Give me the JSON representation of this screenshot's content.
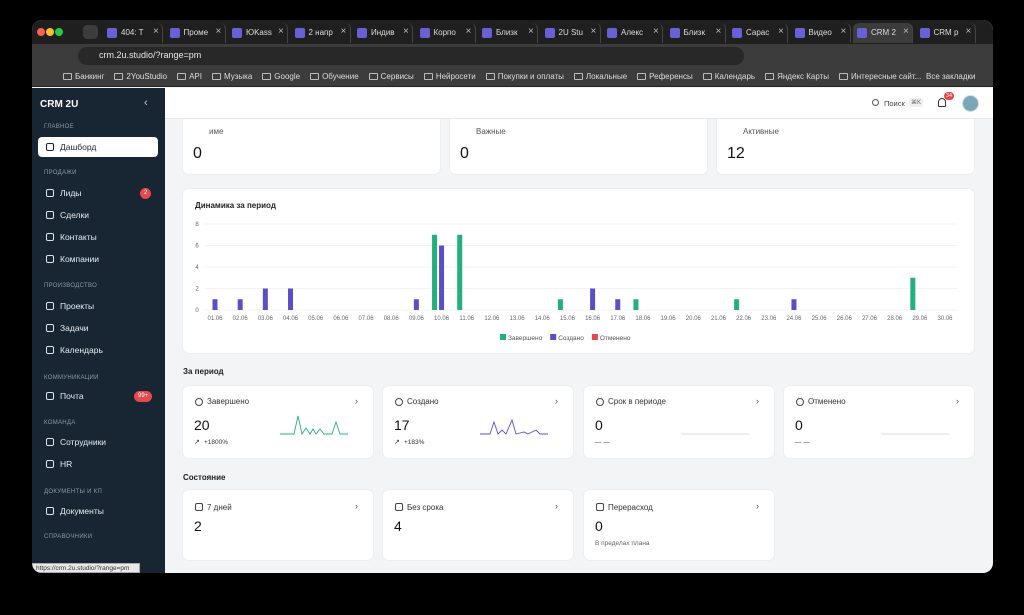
{
  "browser": {
    "tabs": [
      "404: T",
      "Проме",
      "ЮKass",
      "2 напр",
      "Индив",
      "Корпо",
      "Близк",
      "2U Stu",
      "Алекс",
      "Близк",
      "Сарас",
      "Видео",
      "CRM 2",
      "CRM р"
    ],
    "active_tab": 12,
    "url": "crm.2u.studio/?range=pm",
    "bookmarks": [
      "Банкинг",
      "2YouStudio",
      "API",
      "Музыка",
      "Google",
      "Обучение",
      "Сервисы",
      "Нейросети",
      "Покупки и оплаты",
      "Локальные",
      "Референсы",
      "Календарь",
      "Яндекс Карты",
      "Интересные сайт..."
    ],
    "all_bookmarks": "Все закладки"
  },
  "sidebar": {
    "brand": "CRM 2U",
    "sections": [
      {
        "title": "ГЛАВНОЕ",
        "items": [
          {
            "label": "Дашборд"
          }
        ]
      },
      {
        "title": "ПРОДАЖИ",
        "items": [
          {
            "label": "Лиды",
            "badge": "2"
          },
          {
            "label": "Сделки"
          },
          {
            "label": "Контакты"
          },
          {
            "label": "Компании"
          }
        ]
      },
      {
        "title": "ПРОИЗВОДСТВО",
        "items": [
          {
            "label": "Проекты"
          },
          {
            "label": "Задачи"
          },
          {
            "label": "Календарь"
          }
        ]
      },
      {
        "title": "КОММУНИКАЦИИ",
        "items": [
          {
            "label": "Почта",
            "badge": "99+"
          }
        ]
      },
      {
        "title": "КОМАНДА",
        "items": [
          {
            "label": "Сотрудники"
          },
          {
            "label": "HR"
          }
        ]
      },
      {
        "title": "ДОКУМЕНТЫ И КП",
        "items": [
          {
            "label": "Документы"
          }
        ]
      },
      {
        "title": "СПРАВОЧНИКИ",
        "items": []
      }
    ]
  },
  "topbar": {
    "search": "Поиск",
    "shortcut": "⌘K",
    "notifications": "34"
  },
  "top_cards": [
    {
      "label": "име",
      "value": "0"
    },
    {
      "label": "Важные",
      "value": "0"
    },
    {
      "label": "Активные",
      "value": "12"
    }
  ],
  "chart_data": {
    "type": "bar",
    "title": "Динамика за период",
    "categories": [
      "01.06",
      "02.06",
      "03.06",
      "04.06",
      "05.06",
      "06.06",
      "07.06",
      "08.06",
      "09.06",
      "10.06",
      "11.06",
      "12.06",
      "13.06",
      "14.06",
      "15.06",
      "16.06",
      "17.06",
      "18.06",
      "19.06",
      "20.06",
      "21.06",
      "22.06",
      "23.06",
      "24.06",
      "25.06",
      "26.06",
      "27.06",
      "28.06",
      "29.06",
      "30.06"
    ],
    "series": [
      {
        "name": "Завершено",
        "color": "#22b07d",
        "values": [
          0,
          0,
          0,
          0,
          0,
          0,
          0,
          0,
          0,
          7,
          7,
          0,
          0,
          0,
          1,
          0,
          0,
          1,
          0,
          0,
          0,
          1,
          0,
          0,
          0,
          0,
          0,
          0,
          3,
          0
        ]
      },
      {
        "name": "Создано",
        "color": "#5b4fc9",
        "values": [
          1,
          1,
          2,
          2,
          0,
          0,
          0,
          0,
          1,
          6,
          0,
          0,
          0,
          0,
          0,
          2,
          1,
          0,
          0,
          0,
          0,
          0,
          0,
          1,
          0,
          0,
          0,
          0,
          0,
          0
        ]
      },
      {
        "name": "Отменено",
        "color": "#e5484d",
        "values": [
          0,
          0,
          0,
          0,
          0,
          0,
          0,
          0,
          0,
          0,
          0,
          0,
          0,
          0,
          0,
          0,
          0,
          0,
          0,
          0,
          0,
          0,
          0,
          0,
          0,
          0,
          0,
          0,
          0,
          0
        ]
      }
    ],
    "ylim": [
      0,
      8
    ],
    "yticks": [
      0,
      2,
      4,
      6,
      8
    ]
  },
  "period": {
    "title": "За период",
    "cards": [
      {
        "label": "Завершено",
        "value": "20",
        "delta": "+1800%"
      },
      {
        "label": "Создано",
        "value": "17",
        "delta": "+183%"
      },
      {
        "label": "Срок в периоде",
        "value": "0",
        "delta": "— —"
      },
      {
        "label": "Отменено",
        "value": "0",
        "delta": "— —"
      }
    ]
  },
  "state": {
    "title": "Состояние",
    "cards": [
      {
        "label": "7 дней",
        "value": "2"
      },
      {
        "label": "Без срока",
        "value": "4"
      },
      {
        "label": "Перерасход",
        "value": "0",
        "note": "В пределах плана"
      }
    ]
  },
  "status_url": "https://crm.2u.studio/?range=pm"
}
